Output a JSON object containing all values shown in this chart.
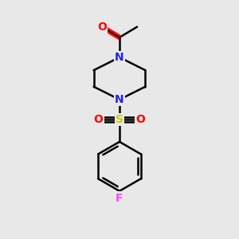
{
  "bg_color": "#e8e8e8",
  "atom_colors": {
    "N": "#2020ff",
    "O": "#ff0000",
    "S": "#cccc00",
    "F": "#ff44ff",
    "C": "#000000"
  },
  "line_color": "#000000",
  "line_width": 1.8,
  "font_size": 10
}
